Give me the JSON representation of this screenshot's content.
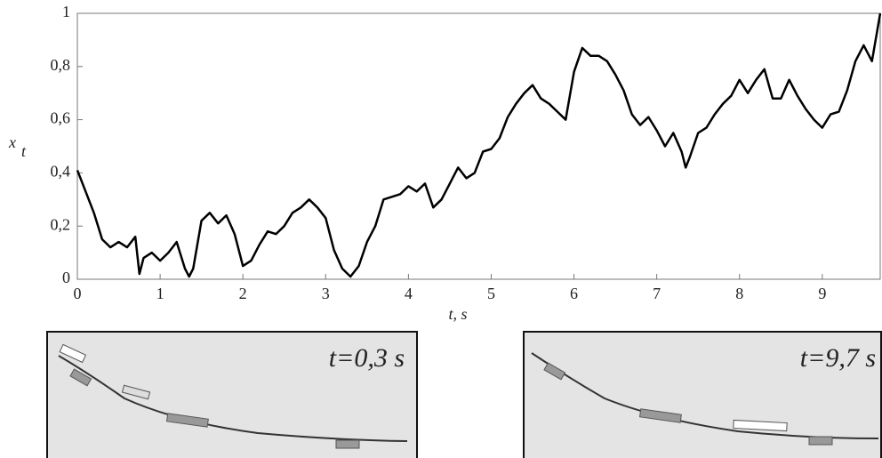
{
  "chart_data": {
    "type": "line",
    "xlabel": "t, s",
    "ylabel": "x",
    "ylabel_sub": "t",
    "xlim": [
      0,
      9.7
    ],
    "ylim": [
      0,
      1
    ],
    "xticks": [
      0,
      1,
      2,
      3,
      4,
      5,
      6,
      7,
      8,
      9
    ],
    "yticks": [
      0,
      {
        "value": 0.2,
        "label": "0,2"
      },
      {
        "value": 0.4,
        "label": "0,4"
      },
      {
        "value": 0.6,
        "label": "0,6"
      },
      {
        "value": 0.8,
        "label": "0,8"
      },
      1
    ],
    "grid": false,
    "series": [
      {
        "color": "#000000",
        "x": [
          0,
          0.1,
          0.2,
          0.3,
          0.4,
          0.5,
          0.6,
          0.7,
          0.75,
          0.8,
          0.9,
          1.0,
          1.1,
          1.2,
          1.3,
          1.35,
          1.4,
          1.5,
          1.6,
          1.7,
          1.8,
          1.9,
          2.0,
          2.1,
          2.2,
          2.3,
          2.4,
          2.5,
          2.6,
          2.7,
          2.8,
          2.9,
          3.0,
          3.1,
          3.2,
          3.3,
          3.4,
          3.5,
          3.6,
          3.7,
          3.8,
          3.9,
          4.0,
          4.1,
          4.2,
          4.3,
          4.4,
          4.5,
          4.6,
          4.7,
          4.8,
          4.9,
          5.0,
          5.1,
          5.2,
          5.3,
          5.4,
          5.5,
          5.6,
          5.7,
          5.8,
          5.9,
          6.0,
          6.1,
          6.2,
          6.3,
          6.4,
          6.5,
          6.6,
          6.7,
          6.8,
          6.9,
          7.0,
          7.1,
          7.2,
          7.3,
          7.35,
          7.4,
          7.5,
          7.6,
          7.7,
          7.8,
          7.9,
          8.0,
          8.1,
          8.2,
          8.3,
          8.4,
          8.5,
          8.6,
          8.7,
          8.8,
          8.9,
          9.0,
          9.1,
          9.2,
          9.3,
          9.4,
          9.5,
          9.6,
          9.7
        ],
        "values": [
          0.41,
          0.33,
          0.25,
          0.15,
          0.12,
          0.14,
          0.12,
          0.16,
          0.02,
          0.08,
          0.1,
          0.07,
          0.1,
          0.14,
          0.04,
          0.01,
          0.04,
          0.22,
          0.25,
          0.21,
          0.24,
          0.17,
          0.05,
          0.07,
          0.13,
          0.18,
          0.17,
          0.2,
          0.25,
          0.27,
          0.3,
          0.27,
          0.23,
          0.11,
          0.04,
          0.01,
          0.05,
          0.14,
          0.2,
          0.3,
          0.31,
          0.32,
          0.35,
          0.33,
          0.36,
          0.27,
          0.3,
          0.36,
          0.42,
          0.38,
          0.4,
          0.48,
          0.49,
          0.53,
          0.61,
          0.66,
          0.7,
          0.73,
          0.68,
          0.66,
          0.63,
          0.6,
          0.78,
          0.87,
          0.84,
          0.84,
          0.82,
          0.77,
          0.71,
          0.62,
          0.58,
          0.61,
          0.56,
          0.5,
          0.55,
          0.48,
          0.42,
          0.46,
          0.55,
          0.57,
          0.62,
          0.66,
          0.69,
          0.75,
          0.7,
          0.75,
          0.79,
          0.68,
          0.68,
          0.75,
          0.69,
          0.64,
          0.6,
          0.57,
          0.62,
          0.63,
          0.71,
          0.82,
          0.88,
          0.82,
          1.0
        ]
      }
    ]
  },
  "insets": [
    {
      "label": "t=0,3 s"
    },
    {
      "label": "t=9,7 s"
    }
  ]
}
